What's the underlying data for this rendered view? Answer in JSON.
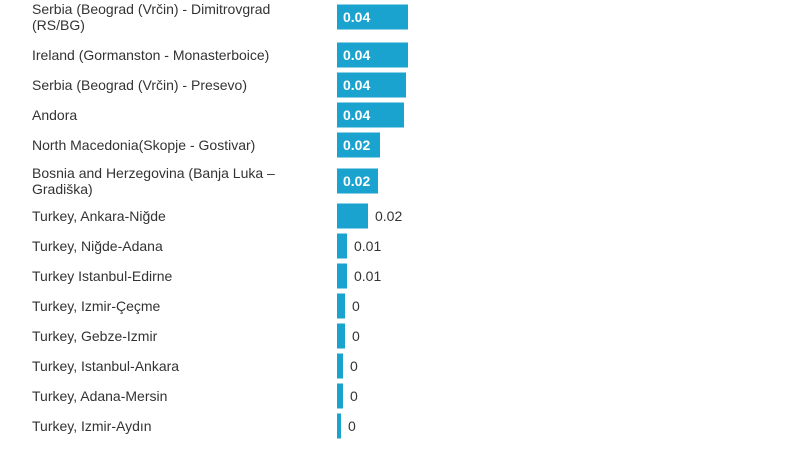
{
  "chart_data": {
    "type": "bar",
    "orientation": "horizontal",
    "categories": [
      "Serbia (Beograd (Vrčin) - Dimitrovgrad (RS/BG)",
      "Ireland (Gormanston - Monasterboice)",
      "Serbia (Beograd (Vrčin) - Presevo)",
      "Andora",
      "North Macedonia(Skopje - Gostivar)",
      "Bosnia and Herzegovina (Banja Luka – Gradiška)",
      "Turkey, Ankara-Niğde",
      "Turkey, Niğde-Adana",
      "Turkey Istanbul-Edirne",
      "Turkey, Izmir-Çeçme",
      "Turkey, Gebze-Izmir",
      "Turkey, Istanbul-Ankara",
      "Turkey, Adana-Mersin",
      "Turkey, Izmir-Aydın"
    ],
    "values": [
      0.04,
      0.04,
      0.039,
      0.038,
      0.024,
      0.023,
      0.0175,
      0.0056,
      0.0056,
      0.0045,
      0.0045,
      0.0034,
      0.0034,
      0.0023
    ],
    "data_labels": [
      "0.04",
      "0.04",
      "0.04",
      "0.04",
      "0.02",
      "0.02",
      "0.02",
      "0.01",
      "0.01",
      "0",
      "0",
      "0",
      "0",
      "0"
    ],
    "bar_color": "#1ba3d0",
    "grid": false,
    "legend": "none"
  }
}
